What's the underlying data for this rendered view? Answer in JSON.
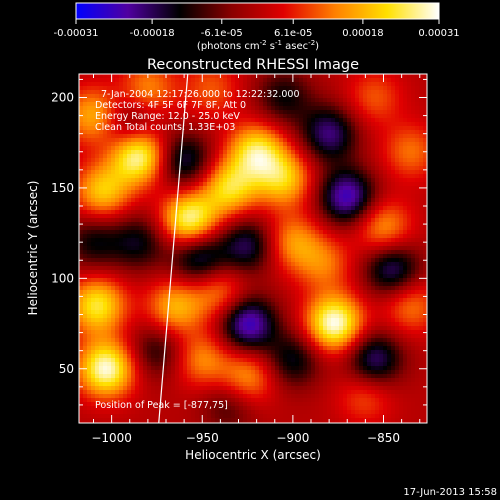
{
  "colorbar": {
    "tick_labels": [
      "-0.00031",
      "-0.00018",
      "-6.1e-05",
      "6.1e-05",
      "0.00018",
      "0.00031"
    ],
    "tick_values": [
      -0.00031,
      -0.00018,
      -6.1e-05,
      6.1e-05,
      0.00018,
      0.00031
    ],
    "unit_main": "(photons cm",
    "unit_exp1": "-2",
    "unit_mid": " s",
    "unit_exp2": "-1",
    "unit_tail": " asec",
    "unit_exp3": "-2",
    "unit_close": ")",
    "range": [
      -0.00031,
      0.00031
    ],
    "colormap": [
      "#0000ff",
      "#5000a0",
      "#000000",
      "#8a0000",
      "#e00000",
      "#ff8000",
      "#ffe000",
      "#ffffff"
    ]
  },
  "chart_data": {
    "type": "heatmap",
    "title": "Reconstructed RHESSI Image",
    "xlabel": "Heliocentric X (arcsec)",
    "ylabel": "Heliocentric Y (arcsec)",
    "xlim": [
      -1018,
      -826
    ],
    "ylim": [
      20,
      213
    ],
    "x_ticks": [
      -1000,
      -950,
      -900,
      -850
    ],
    "y_ticks": [
      50,
      100,
      150,
      200
    ],
    "annotations": {
      "time_range": "7-Jan-2004 12:17:26.000 to 12:22:32.000",
      "detectors": "Detectors: 4F 5F 6F 7F 8F, Att 0",
      "energy": "Energy Range: 12.0 - 25.0 keV",
      "method": "Clean    Total counts: 1.33E+03",
      "peak": "Position of Peak = [-877,75]"
    },
    "limb_line": [
      [
        -958,
        213
      ],
      [
        -974,
        20
      ]
    ],
    "sources": [
      {
        "x": -985,
        "y": 168,
        "value": 0.0003
      },
      {
        "x": -1005,
        "y": 148,
        "value": 0.0002
      },
      {
        "x": -957,
        "y": 132,
        "value": 0.00029
      },
      {
        "x": -935,
        "y": 150,
        "value": 0.00022
      },
      {
        "x": -920,
        "y": 170,
        "value": 0.00024
      },
      {
        "x": -905,
        "y": 155,
        "value": 0.0002
      },
      {
        "x": -900,
        "y": 120,
        "value": 0.00015
      },
      {
        "x": -877,
        "y": 75,
        "value": 0.00031
      },
      {
        "x": -883,
        "y": 108,
        "value": 0.00012
      },
      {
        "x": -1003,
        "y": 50,
        "value": 0.0003
      },
      {
        "x": -1008,
        "y": 85,
        "value": 0.00024
      },
      {
        "x": -965,
        "y": 84,
        "value": 0.00018
      },
      {
        "x": -940,
        "y": 92,
        "value": 0.00014
      },
      {
        "x": -850,
        "y": 128,
        "value": 0.00016
      },
      {
        "x": -835,
        "y": 170,
        "value": 0.00012
      },
      {
        "x": -980,
        "y": 205,
        "value": 0.00014
      },
      {
        "x": -945,
        "y": 205,
        "value": 0.0001
      },
      {
        "x": -855,
        "y": 200,
        "value": 0.0001
      },
      {
        "x": -925,
        "y": 45,
        "value": 0.00016
      },
      {
        "x": -950,
        "y": 55,
        "value": 0.00014
      },
      {
        "x": -1010,
        "y": 190,
        "value": 0.00018
      },
      {
        "x": -860,
        "y": 35,
        "value": 0.0001
      },
      {
        "x": -835,
        "y": 85,
        "value": 0.00013
      },
      {
        "x": -960,
        "y": 165,
        "value": -0.00018
      },
      {
        "x": -952,
        "y": 112,
        "value": -0.0002
      },
      {
        "x": -925,
        "y": 118,
        "value": -0.00018
      },
      {
        "x": -925,
        "y": 75,
        "value": -0.00026
      },
      {
        "x": -870,
        "y": 145,
        "value": -0.00025
      },
      {
        "x": -880,
        "y": 180,
        "value": -0.0002
      },
      {
        "x": -845,
        "y": 105,
        "value": -0.0002
      },
      {
        "x": -855,
        "y": 55,
        "value": -0.0002
      },
      {
        "x": -900,
        "y": 55,
        "value": -0.00015
      },
      {
        "x": -985,
        "y": 120,
        "value": -0.00014
      },
      {
        "x": -1010,
        "y": 120,
        "value": -0.00013
      },
      {
        "x": -990,
        "y": 185,
        "value": -0.00013
      },
      {
        "x": -975,
        "y": 60,
        "value": -0.00012
      },
      {
        "x": -905,
        "y": 200,
        "value": -0.00013
      },
      {
        "x": -935,
        "y": 30,
        "value": -0.0001
      }
    ]
  },
  "footer": {
    "timestamp": "17-Jun-2013 15:58"
  }
}
